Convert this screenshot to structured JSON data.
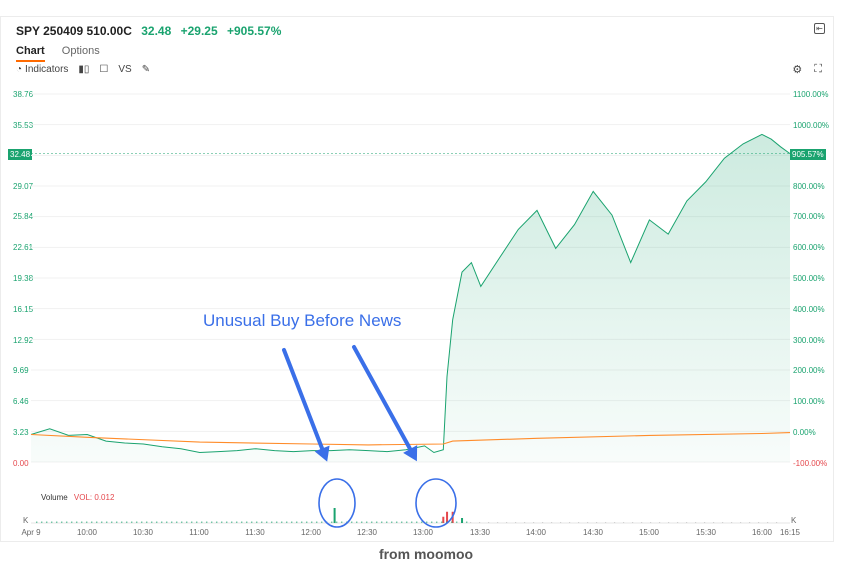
{
  "header": {
    "symbol": "SPY 250409 510.00C",
    "price": "32.48",
    "change": "+29.25",
    "change_pct": "+905.57%"
  },
  "tabs": [
    {
      "label": "Chart",
      "active": true
    },
    {
      "label": "Options",
      "active": false
    }
  ],
  "toolbar": {
    "indicators_label": "Indicators",
    "vs_label": "VS",
    "icons": [
      "indicators-icon",
      "candle-type-icon",
      "square-icon",
      "pen-icon",
      "settings-icon",
      "fullscreen-icon"
    ]
  },
  "y_axis_left": [
    "38.76",
    "35.53",
    "32.48",
    "29.07",
    "25.84",
    "22.61",
    "19.38",
    "16.15",
    "12.92",
    "9.69",
    "6.46",
    "3.23",
    "0.00"
  ],
  "y_axis_right": [
    "1100.00%",
    "1000.00%",
    "905.57%",
    "800.00%",
    "700.00%",
    "600.00%",
    "500.00%",
    "400.00%",
    "300.00%",
    "200.00%",
    "100.00%",
    "0.00%",
    "-100.00%"
  ],
  "current_tag_left": "32.48",
  "current_tag_right": "905.57%",
  "x_axis": [
    "Apr 9",
    "10:00",
    "10:30",
    "11:00",
    "11:30",
    "12:00",
    "12:30",
    "13:00",
    "13:30",
    "14:00",
    "14:30",
    "15:00",
    "15:30",
    "16:00",
    "16:15"
  ],
  "volume": {
    "label": "Volume",
    "vol_text": "VOL: 0.012",
    "unit_left": "K",
    "unit_right": "K"
  },
  "annotation": {
    "text": "Unusual Buy Before News"
  },
  "footer": "from moomoo",
  "colors": {
    "up": "#1aa36f",
    "down": "#e5484d",
    "avg": "#ff8c2a",
    "annotation": "#3a6fe8"
  },
  "chart_data": {
    "type": "line",
    "title": "SPY 250409 510.00C",
    "xlabel": "",
    "ylabel": "",
    "x_ticks": [
      "Apr 9",
      "10:00",
      "10:30",
      "11:00",
      "11:30",
      "12:00",
      "12:30",
      "13:00",
      "13:30",
      "14:00",
      "14:30",
      "15:00",
      "15:30",
      "16:00",
      "16:15"
    ],
    "ylim": [
      0,
      38.76
    ],
    "series": [
      {
        "name": "",
        "x": [
          "09:30",
          "09:40",
          "09:50",
          "10:00",
          "10:10",
          "10:20",
          "10:30",
          "10:40",
          "10:50",
          "11:00",
          "11:10",
          "11:20",
          "11:30",
          "11:40",
          "11:50",
          "12:00",
          "12:10",
          "12:20",
          "12:30",
          "12:40",
          "12:50",
          "13:00",
          "13:05",
          "13:10",
          "13:12",
          "13:15",
          "13:20",
          "13:25",
          "13:30",
          "13:40",
          "13:50",
          "14:00",
          "14:10",
          "14:20",
          "14:30",
          "14:40",
          "14:50",
          "15:00",
          "15:10",
          "15:20",
          "15:30",
          "15:40",
          "15:50",
          "16:00",
          "16:05",
          "16:10",
          "16:15"
        ],
        "values": [
          2.9,
          3.5,
          2.8,
          2.9,
          2.2,
          2.0,
          1.9,
          1.6,
          1.4,
          1.0,
          1.1,
          1.2,
          1.4,
          1.2,
          1.1,
          1.2,
          1.2,
          1.3,
          1.2,
          1.1,
          1.3,
          1.7,
          1.0,
          1.3,
          9.0,
          15.0,
          20.0,
          21.0,
          18.5,
          21.5,
          24.5,
          26.5,
          22.5,
          25.0,
          28.5,
          26.0,
          21.0,
          25.5,
          24.0,
          27.5,
          29.5,
          32.0,
          33.5,
          34.5,
          34.0,
          33.2,
          32.48
        ]
      },
      {
        "name": "",
        "x": [
          "09:30",
          "10:00",
          "11:00",
          "12:00",
          "12:30",
          "13:10",
          "13:15",
          "14:00",
          "15:00",
          "16:00",
          "16:15"
        ],
        "values": [
          2.9,
          2.6,
          2.1,
          1.9,
          1.8,
          1.9,
          2.2,
          2.5,
          2.8,
          3.0,
          3.1
        ]
      }
    ],
    "volume_bars": [
      {
        "x": "12:12",
        "value": 0.012,
        "color": "up"
      },
      {
        "x": "13:10",
        "value": 0.005,
        "color": "down"
      },
      {
        "x": "13:12",
        "value": 0.009,
        "color": "down"
      },
      {
        "x": "13:15",
        "value": 0.009,
        "color": "down"
      },
      {
        "x": "13:20",
        "value": 0.004,
        "color": "up"
      }
    ]
  }
}
